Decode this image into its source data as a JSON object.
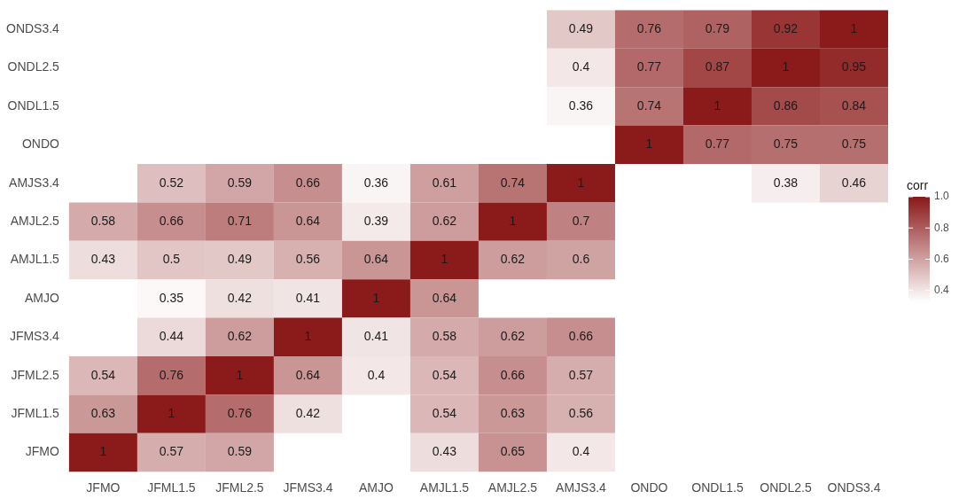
{
  "chart_data": {
    "type": "heatmap",
    "clabel": "corr",
    "data_labels": true,
    "categories": [
      "JFMO",
      "JFML1.5",
      "JFML2.5",
      "JFMS3.4",
      "AMJO",
      "AMJL1.5",
      "AMJL2.5",
      "AMJS3.4",
      "ONDO",
      "ONDL1.5",
      "ONDL2.5",
      "ONDS3.4"
    ],
    "y_categories": [
      "ONDS3.4",
      "ONDL2.5",
      "ONDL1.5",
      "ONDO",
      "AMJS3.4",
      "AMJL2.5",
      "AMJL1.5",
      "AMJO",
      "JFMS3.4",
      "JFML2.5",
      "JFML1.5",
      "JFMO"
    ],
    "cells": [
      [
        null,
        null,
        null,
        null,
        null,
        null,
        null,
        0.49,
        0.76,
        0.79,
        0.92,
        1
      ],
      [
        null,
        null,
        null,
        null,
        null,
        null,
        null,
        0.4,
        0.77,
        0.87,
        1,
        0.95
      ],
      [
        null,
        null,
        null,
        null,
        null,
        null,
        null,
        0.36,
        0.74,
        1,
        0.86,
        0.84
      ],
      [
        null,
        null,
        null,
        null,
        null,
        null,
        null,
        null,
        1,
        0.77,
        0.75,
        0.75
      ],
      [
        null,
        0.52,
        0.59,
        0.66,
        0.36,
        0.61,
        0.74,
        1,
        null,
        null,
        0.38,
        0.46
      ],
      [
        0.58,
        0.66,
        0.71,
        0.64,
        0.39,
        0.62,
        1,
        0.7,
        null,
        null,
        null,
        null
      ],
      [
        0.43,
        0.5,
        0.49,
        0.56,
        0.64,
        1,
        0.62,
        0.6,
        null,
        null,
        null,
        null
      ],
      [
        null,
        0.35,
        0.42,
        0.41,
        1,
        0.64,
        null,
        null,
        null,
        null,
        null,
        null
      ],
      [
        null,
        0.44,
        0.62,
        1,
        0.41,
        0.58,
        0.62,
        0.66,
        null,
        null,
        null,
        null
      ],
      [
        0.54,
        0.76,
        1,
        0.64,
        0.4,
        0.54,
        0.66,
        0.57,
        null,
        null,
        null,
        null
      ],
      [
        0.63,
        1,
        0.76,
        0.42,
        null,
        0.54,
        0.63,
        0.56,
        null,
        null,
        null,
        null
      ],
      [
        1,
        0.57,
        0.59,
        null,
        null,
        0.43,
        0.65,
        0.4,
        null,
        null,
        null,
        null
      ]
    ],
    "clim": [
      0.33,
      1
    ],
    "cticks": [
      0.4,
      0.6,
      0.8,
      {
        "value": 1,
        "label": "1.0"
      }
    ]
  }
}
